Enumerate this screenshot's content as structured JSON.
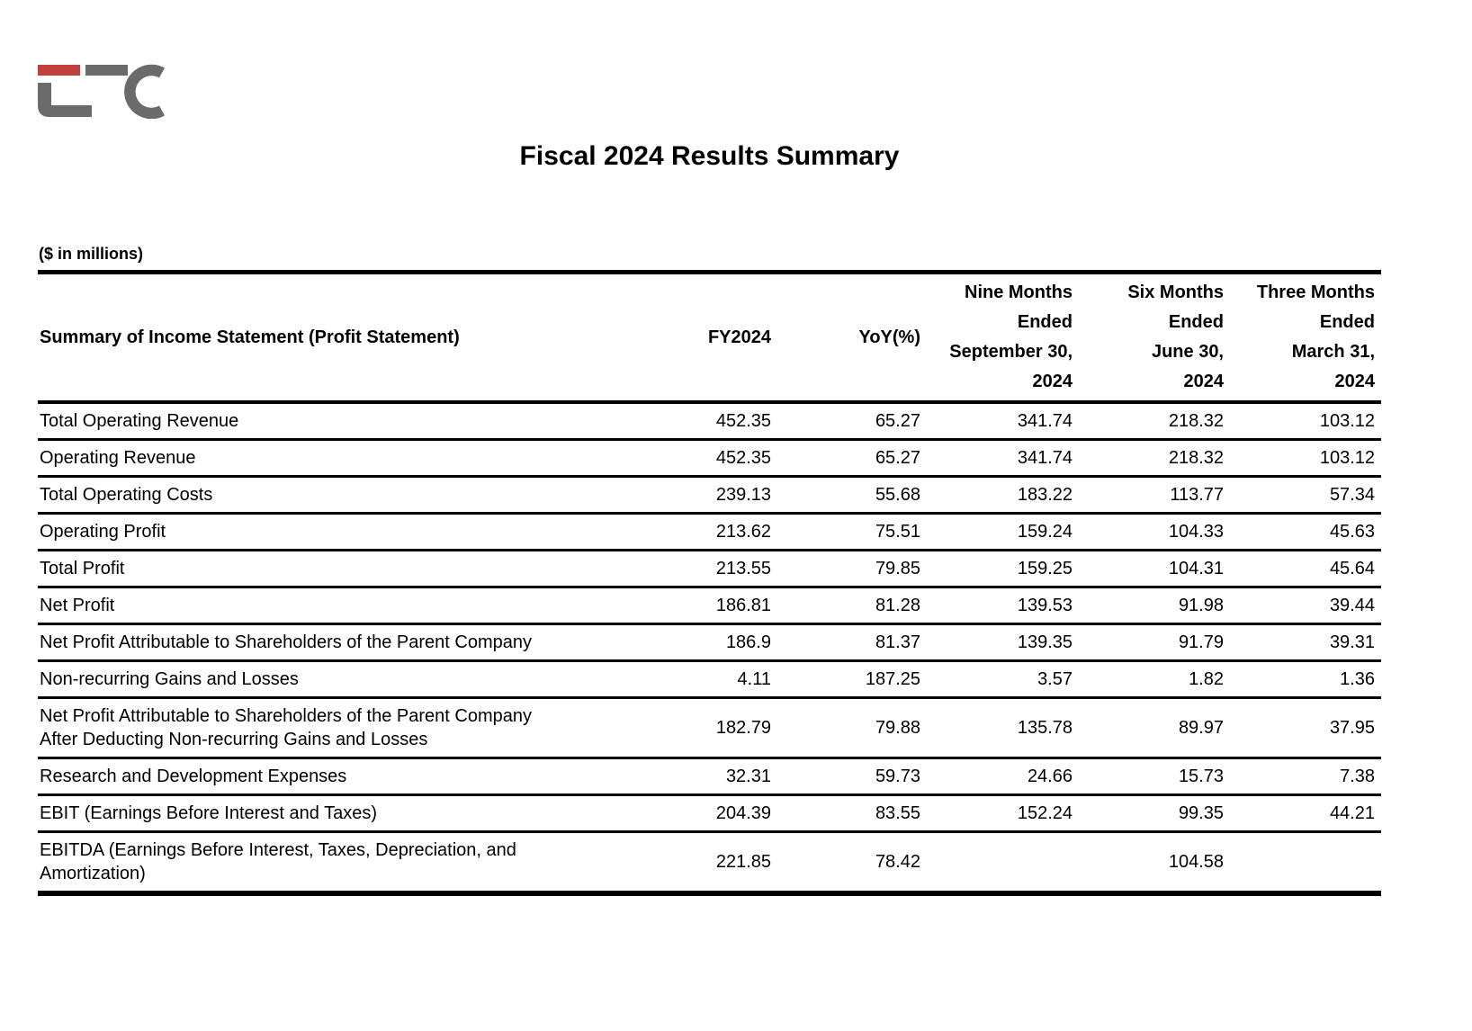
{
  "logo": {
    "name": "LFC company logo",
    "red_color": "#c0413c",
    "gray_color": "#6b6b6b"
  },
  "title": "Fiscal 2024 Results Summary",
  "units_note": "($ in millions)",
  "table": {
    "label_header": "Summary of Income Statement (Profit Statement)",
    "column_headers": [
      "FY2024",
      "YoY(%)",
      "Nine Months\nEnded\nSeptember 30,\n2024",
      "Six Months\nEnded\nJune 30,\n2024",
      "Three Months\nEnded\nMarch 31,\n2024"
    ],
    "rows": [
      {
        "label": "Total Operating Revenue",
        "values": [
          "452.35",
          "65.27",
          "341.74",
          "218.32",
          "103.12"
        ]
      },
      {
        "label": "Operating Revenue",
        "values": [
          "452.35",
          "65.27",
          "341.74",
          "218.32",
          "103.12"
        ]
      },
      {
        "label": "Total Operating Costs",
        "values": [
          "239.13",
          "55.68",
          "183.22",
          "113.77",
          "57.34"
        ]
      },
      {
        "label": "Operating Profit",
        "values": [
          "213.62",
          "75.51",
          "159.24",
          "104.33",
          "45.63"
        ]
      },
      {
        "label": "Total Profit",
        "values": [
          "213.55",
          "79.85",
          "159.25",
          "104.31",
          "45.64"
        ]
      },
      {
        "label": "Net Profit",
        "values": [
          "186.81",
          "81.28",
          "139.53",
          "91.98",
          "39.44"
        ]
      },
      {
        "label": "Net Profit Attributable to Shareholders of the Parent Company",
        "values": [
          "186.9",
          "81.37",
          "139.35",
          "91.79",
          "39.31"
        ]
      },
      {
        "label": "Non-recurring Gains and Losses",
        "values": [
          "4.11",
          "187.25",
          "3.57",
          "1.82",
          "1.36"
        ]
      },
      {
        "label": "Net Profit Attributable to Shareholders of the Parent Company\nAfter Deducting Non-recurring Gains and Losses",
        "values": [
          "182.79",
          "79.88",
          "135.78",
          "89.97",
          "37.95"
        ]
      },
      {
        "label": "Research and Development Expenses",
        "values": [
          "32.31",
          "59.73",
          "24.66",
          "15.73",
          "7.38"
        ]
      },
      {
        "label": "EBIT (Earnings Before Interest and Taxes)",
        "values": [
          "204.39",
          "83.55",
          "152.24",
          "99.35",
          "44.21"
        ]
      },
      {
        "label": "EBITDA (Earnings Before Interest, Taxes, Depreciation, and\nAmortization)",
        "values": [
          "221.85",
          "78.42",
          "",
          "104.58",
          ""
        ]
      }
    ]
  }
}
